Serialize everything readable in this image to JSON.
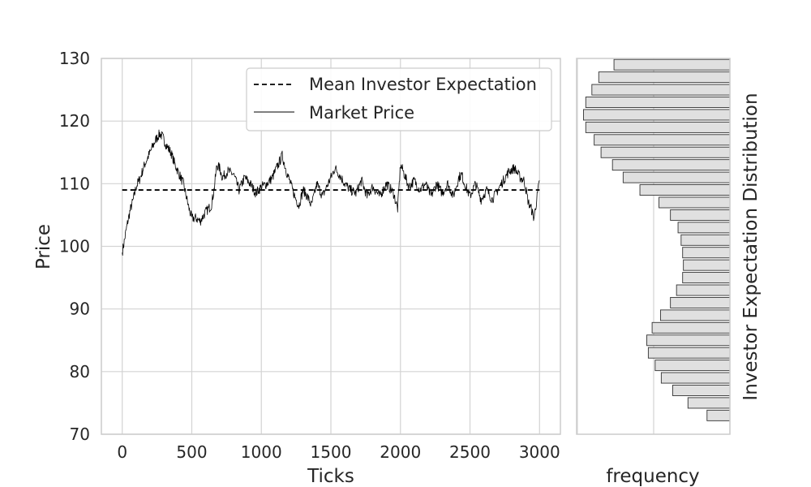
{
  "chart_data": [
    {
      "type": "line",
      "xlabel": "Ticks",
      "ylabel": "Price",
      "xlim": [
        -150,
        3150
      ],
      "ylim": [
        70,
        130
      ],
      "xticks": [
        0,
        500,
        1000,
        1500,
        2000,
        2500,
        3000
      ],
      "yticks": [
        70,
        80,
        90,
        100,
        110,
        120,
        130
      ],
      "grid": true,
      "legend_position": "top-right",
      "series": [
        {
          "name": "Mean Investor Expectation",
          "style": "dashed",
          "color": "#000000",
          "x": [
            0,
            3000
          ],
          "y": [
            109,
            109
          ]
        },
        {
          "name": "Market Price",
          "style": "solid",
          "color": "#000000",
          "x": [
            0,
            20,
            40,
            60,
            80,
            100,
            130,
            160,
            200,
            240,
            270,
            290,
            320,
            350,
            380,
            410,
            440,
            460,
            480,
            500,
            530,
            560,
            600,
            640,
            660,
            680,
            700,
            720,
            760,
            800,
            840,
            880,
            920,
            960,
            1000,
            1040,
            1080,
            1120,
            1150,
            1180,
            1210,
            1240,
            1270,
            1300,
            1330,
            1360,
            1400,
            1440,
            1480,
            1500,
            1530,
            1560,
            1600,
            1640,
            1680,
            1720,
            1760,
            1800,
            1850,
            1900,
            1950,
            1980,
            2000,
            2020,
            2060,
            2100,
            2140,
            2180,
            2220,
            2260,
            2300,
            2340,
            2380,
            2420,
            2440,
            2460,
            2500,
            2540,
            2580,
            2620,
            2660,
            2700,
            2740,
            2780,
            2820,
            2860,
            2890,
            2920,
            2940,
            2960,
            2980,
            3000
          ],
          "y": [
            99,
            101.5,
            104,
            106,
            107.5,
            109.5,
            111,
            113,
            115,
            117,
            118,
            117.5,
            116,
            115,
            113,
            111.5,
            110,
            108,
            106,
            104.5,
            104.5,
            104,
            105.5,
            106.5,
            109,
            113,
            112.5,
            111,
            112,
            111.5,
            109,
            111,
            110,
            108.5,
            109.5,
            110,
            111,
            113,
            114.5,
            112,
            110,
            108,
            106.5,
            109,
            108,
            106.5,
            110,
            108,
            110,
            111,
            112.5,
            111.5,
            110,
            109,
            108.5,
            110.5,
            108,
            109.5,
            108,
            110,
            108.5,
            106,
            113,
            112,
            109.5,
            110.5,
            109,
            110,
            108,
            110,
            108.5,
            110,
            108,
            111,
            111.5,
            110,
            108,
            110,
            107.5,
            109,
            107.5,
            109,
            110.5,
            112,
            112.5,
            111,
            110.5,
            107,
            106,
            104.5,
            107.5,
            110.5
          ]
        }
      ]
    },
    {
      "type": "bar",
      "orientation": "horizontal",
      "xlabel": "frequency",
      "ylabel": "Investor Expectation Distribution",
      "ylim": [
        70,
        130
      ],
      "grid": true,
      "bar_color": "#e0e0e0",
      "bin_edges": [
        72,
        74,
        76,
        78,
        80,
        82,
        84,
        86,
        88,
        90,
        92,
        94,
        96,
        98,
        100,
        102,
        104,
        106,
        108,
        110,
        112,
        114,
        116,
        118,
        120,
        122,
        124,
        126,
        128,
        130
      ],
      "values": [
        3,
        5.5,
        7.5,
        9,
        9.8,
        10.7,
        10.9,
        10.2,
        9.1,
        7.8,
        7,
        6.2,
        6.1,
        6.2,
        6.4,
        6.8,
        7.8,
        9.3,
        11.8,
        14,
        15.4,
        16.9,
        17.8,
        18.9,
        19.2,
        18.9,
        18.1,
        17.2,
        15.2
      ]
    }
  ]
}
